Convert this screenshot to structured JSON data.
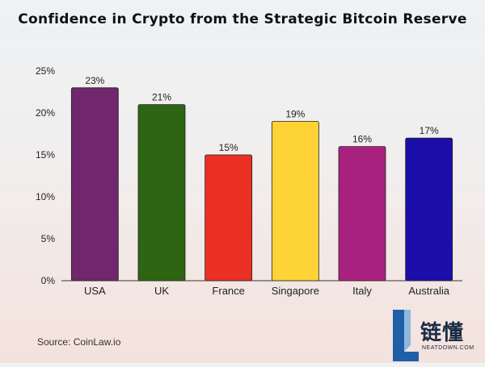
{
  "chart_data": {
    "type": "bar",
    "title": "Confidence in Crypto from the Strategic Bitcoin Reserve",
    "categories": [
      "USA",
      "UK",
      "France",
      "Singapore",
      "Italy",
      "Australia"
    ],
    "values": [
      23,
      21,
      15,
      19,
      16,
      17
    ],
    "data_labels": [
      "23%",
      "21%",
      "15%",
      "19%",
      "16%",
      "17%"
    ],
    "colors": [
      "#70276d",
      "#2e6513",
      "#e93023",
      "#fdd336",
      "#a9217e",
      "#1c0ea9"
    ],
    "ylim": [
      0,
      25
    ],
    "yticks": [
      0,
      5,
      10,
      15,
      20,
      25
    ],
    "ytick_labels": [
      "0%",
      "5%",
      "10%",
      "15%",
      "20%",
      "25%"
    ],
    "xlabel": "",
    "ylabel": "",
    "grid": false,
    "legend": "none"
  },
  "source": "Source: CoinLaw.io",
  "watermark": {
    "logo_text": "链懂",
    "logo_subtext": "NEATDOWN.COM"
  }
}
